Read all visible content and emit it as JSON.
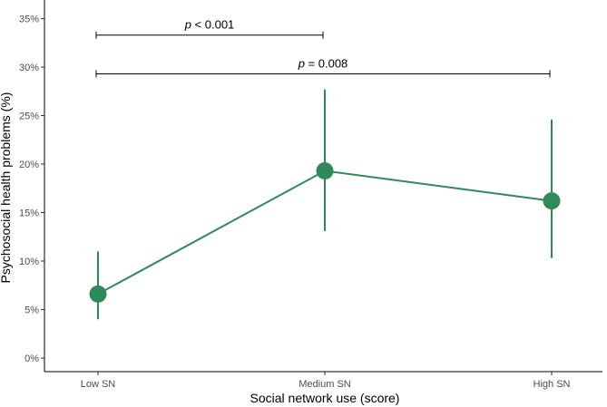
{
  "chart_data": {
    "type": "line",
    "categories": [
      "Low SN",
      "Medium SN",
      "High SN"
    ],
    "series": [
      {
        "values": [
          6.6,
          19.3,
          16.2
        ],
        "lower": [
          4.0,
          13.1,
          10.3
        ],
        "upper": [
          11.0,
          27.7,
          24.6
        ],
        "color": "#2e8b57"
      }
    ],
    "ylim": [
      0,
      35
    ],
    "yticks": [
      0,
      5,
      10,
      15,
      20,
      25,
      30,
      35
    ],
    "ytick_labels": [
      "0%",
      "5%",
      "10%",
      "15%",
      "20%",
      "25%",
      "30%",
      "35%"
    ],
    "xlabel": "Social network use (score)",
    "ylabel": "Psychosocial health problems (%)",
    "grid": false,
    "significance": [
      {
        "from": "Low SN",
        "to": "Medium SN",
        "y": 33.3,
        "p": "p",
        "rest": " < 0.001"
      },
      {
        "from": "Low SN",
        "to": "High SN",
        "y": 29.3,
        "p": "p",
        "rest": " = 0.008"
      }
    ],
    "colors": {
      "series": "#2e8b57",
      "axis": "#000000",
      "tick_text": "#4d4d4d"
    }
  }
}
